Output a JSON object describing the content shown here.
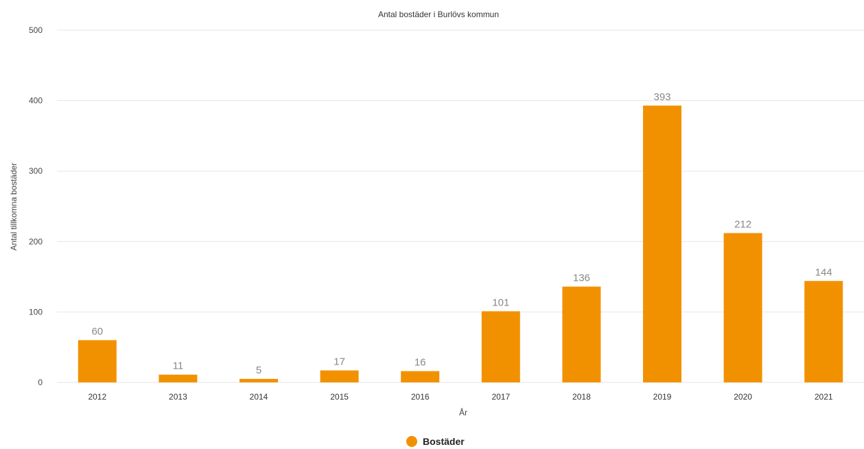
{
  "chart_data": {
    "type": "bar",
    "title": "Antal bostäder i Burlövs kommun",
    "xlabel": "År",
    "ylabel": "Antal tillkomna bostäder",
    "categories": [
      "2012",
      "2013",
      "2014",
      "2015",
      "2016",
      "2017",
      "2018",
      "2019",
      "2020",
      "2021"
    ],
    "series": [
      {
        "name": "Bostäder",
        "values": [
          60,
          11,
          5,
          17,
          16,
          101,
          136,
          393,
          212,
          144
        ],
        "color": "#f29100"
      }
    ],
    "ylim": [
      0,
      500
    ],
    "yticks": [
      0,
      100,
      200,
      300,
      400,
      500
    ],
    "grid": true,
    "data_labels": true,
    "legend_position": "bottom-center"
  }
}
